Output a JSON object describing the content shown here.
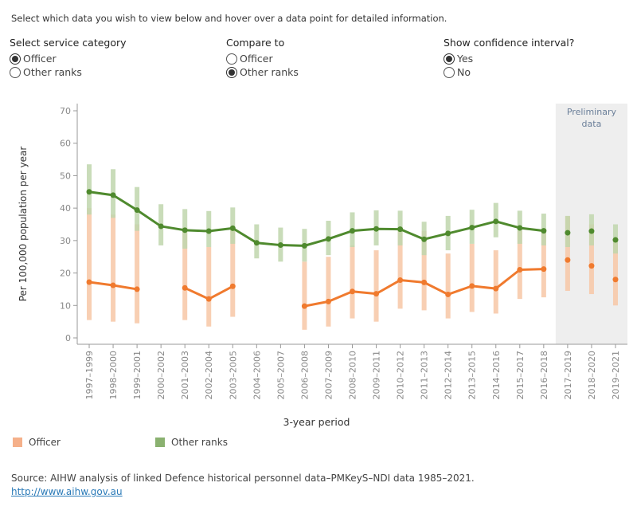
{
  "intro": "Select which data you wish to view below and hover over a data point for detailed information.",
  "controls": {
    "service": {
      "title": "Select service category",
      "options": [
        "Officer",
        "Other ranks"
      ],
      "selected": 0
    },
    "compare": {
      "title": "Compare to",
      "options": [
        "Officer",
        "Other ranks"
      ],
      "selected": 1
    },
    "ci": {
      "title": "Show confidence interval?",
      "options": [
        "Yes",
        "No"
      ],
      "selected": 0
    }
  },
  "colors": {
    "officer": "#f07a2e",
    "officer_ci": "#f7c7a6",
    "other": "#4f8a2e",
    "other_ci": "#bfd6ad",
    "prelim_bg": "#eeeeee"
  },
  "chart_data": {
    "type": "line",
    "ylabel": "Per 100,000 population per year",
    "xlabel": "3-year period",
    "ylim": [
      0,
      70
    ],
    "yticks": [
      0,
      10,
      20,
      30,
      40,
      50,
      60,
      70
    ],
    "grid": false,
    "preliminary_label": [
      "Preliminary",
      "data"
    ],
    "preliminary_from": "2017–2019",
    "categories": [
      "1997–1999",
      "1998–2000",
      "1999–2001",
      "2000–2002",
      "2001–2003",
      "2002–2004",
      "2003–2005",
      "2004–2006",
      "2005–2007",
      "2006–2008",
      "2007–2009",
      "2008–2010",
      "2009–2011",
      "2010–2012",
      "2011–2013",
      "2012–2014",
      "2013–2015",
      "2014–2016",
      "2015–2017",
      "2016–2018",
      "2017–2019",
      "2018–2020",
      "2019–2021"
    ],
    "series": [
      {
        "name": "Officer",
        "values": [
          17.2,
          16.2,
          15.0,
          null,
          15.4,
          12.0,
          15.9,
          null,
          null,
          9.8,
          11.2,
          14.3,
          13.6,
          17.8,
          17.1,
          13.4,
          16.0,
          15.2,
          21.0,
          21.2,
          24.0,
          22.2,
          18.0
        ],
        "ci_low": [
          5.5,
          5.0,
          4.5,
          null,
          5.5,
          3.5,
          6.5,
          null,
          null,
          2.5,
          3.5,
          6.0,
          5.0,
          9.0,
          8.5,
          6.0,
          8.0,
          7.5,
          12.0,
          12.5,
          14.5,
          13.5,
          10.0
        ],
        "ci_high": [
          40.0,
          38.0,
          35.0,
          null,
          34.0,
          28.0,
          34.0,
          null,
          null,
          23.5,
          25.0,
          28.5,
          27.0,
          33.0,
          33.0,
          26.0,
          29.0,
          27.0,
          33.0,
          33.0,
          37.5,
          35.0,
          30.0
        ]
      },
      {
        "name": "Other ranks",
        "values": [
          45.0,
          44.0,
          39.4,
          34.4,
          33.2,
          32.9,
          33.8,
          29.3,
          28.6,
          28.4,
          30.5,
          33.0,
          33.6,
          33.5,
          30.4,
          32.2,
          34.0,
          35.9,
          33.9,
          33.0,
          32.4,
          32.9,
          30.2
        ],
        "ci_low": [
          38.0,
          37.0,
          33.0,
          28.5,
          27.5,
          28.0,
          29.0,
          24.5,
          23.5,
          23.5,
          25.5,
          28.0,
          28.5,
          28.5,
          25.5,
          27.0,
          29.0,
          31.0,
          29.0,
          28.5,
          28.0,
          28.5,
          26.0
        ],
        "ci_high": [
          53.5,
          52.0,
          46.5,
          41.2,
          39.7,
          39.1,
          40.2,
          35.0,
          34.0,
          33.6,
          36.1,
          38.7,
          39.3,
          39.2,
          35.8,
          37.6,
          39.5,
          41.6,
          39.2,
          38.3,
          37.6,
          38.1,
          35.0
        ]
      }
    ]
  },
  "legend": [
    "Officer",
    "Other ranks"
  ],
  "source": {
    "text": "Source: AIHW analysis of linked Defence historical personnel data–PMKeyS–NDI data 1985–2021.",
    "link": "http://www.aihw.gov.au"
  }
}
